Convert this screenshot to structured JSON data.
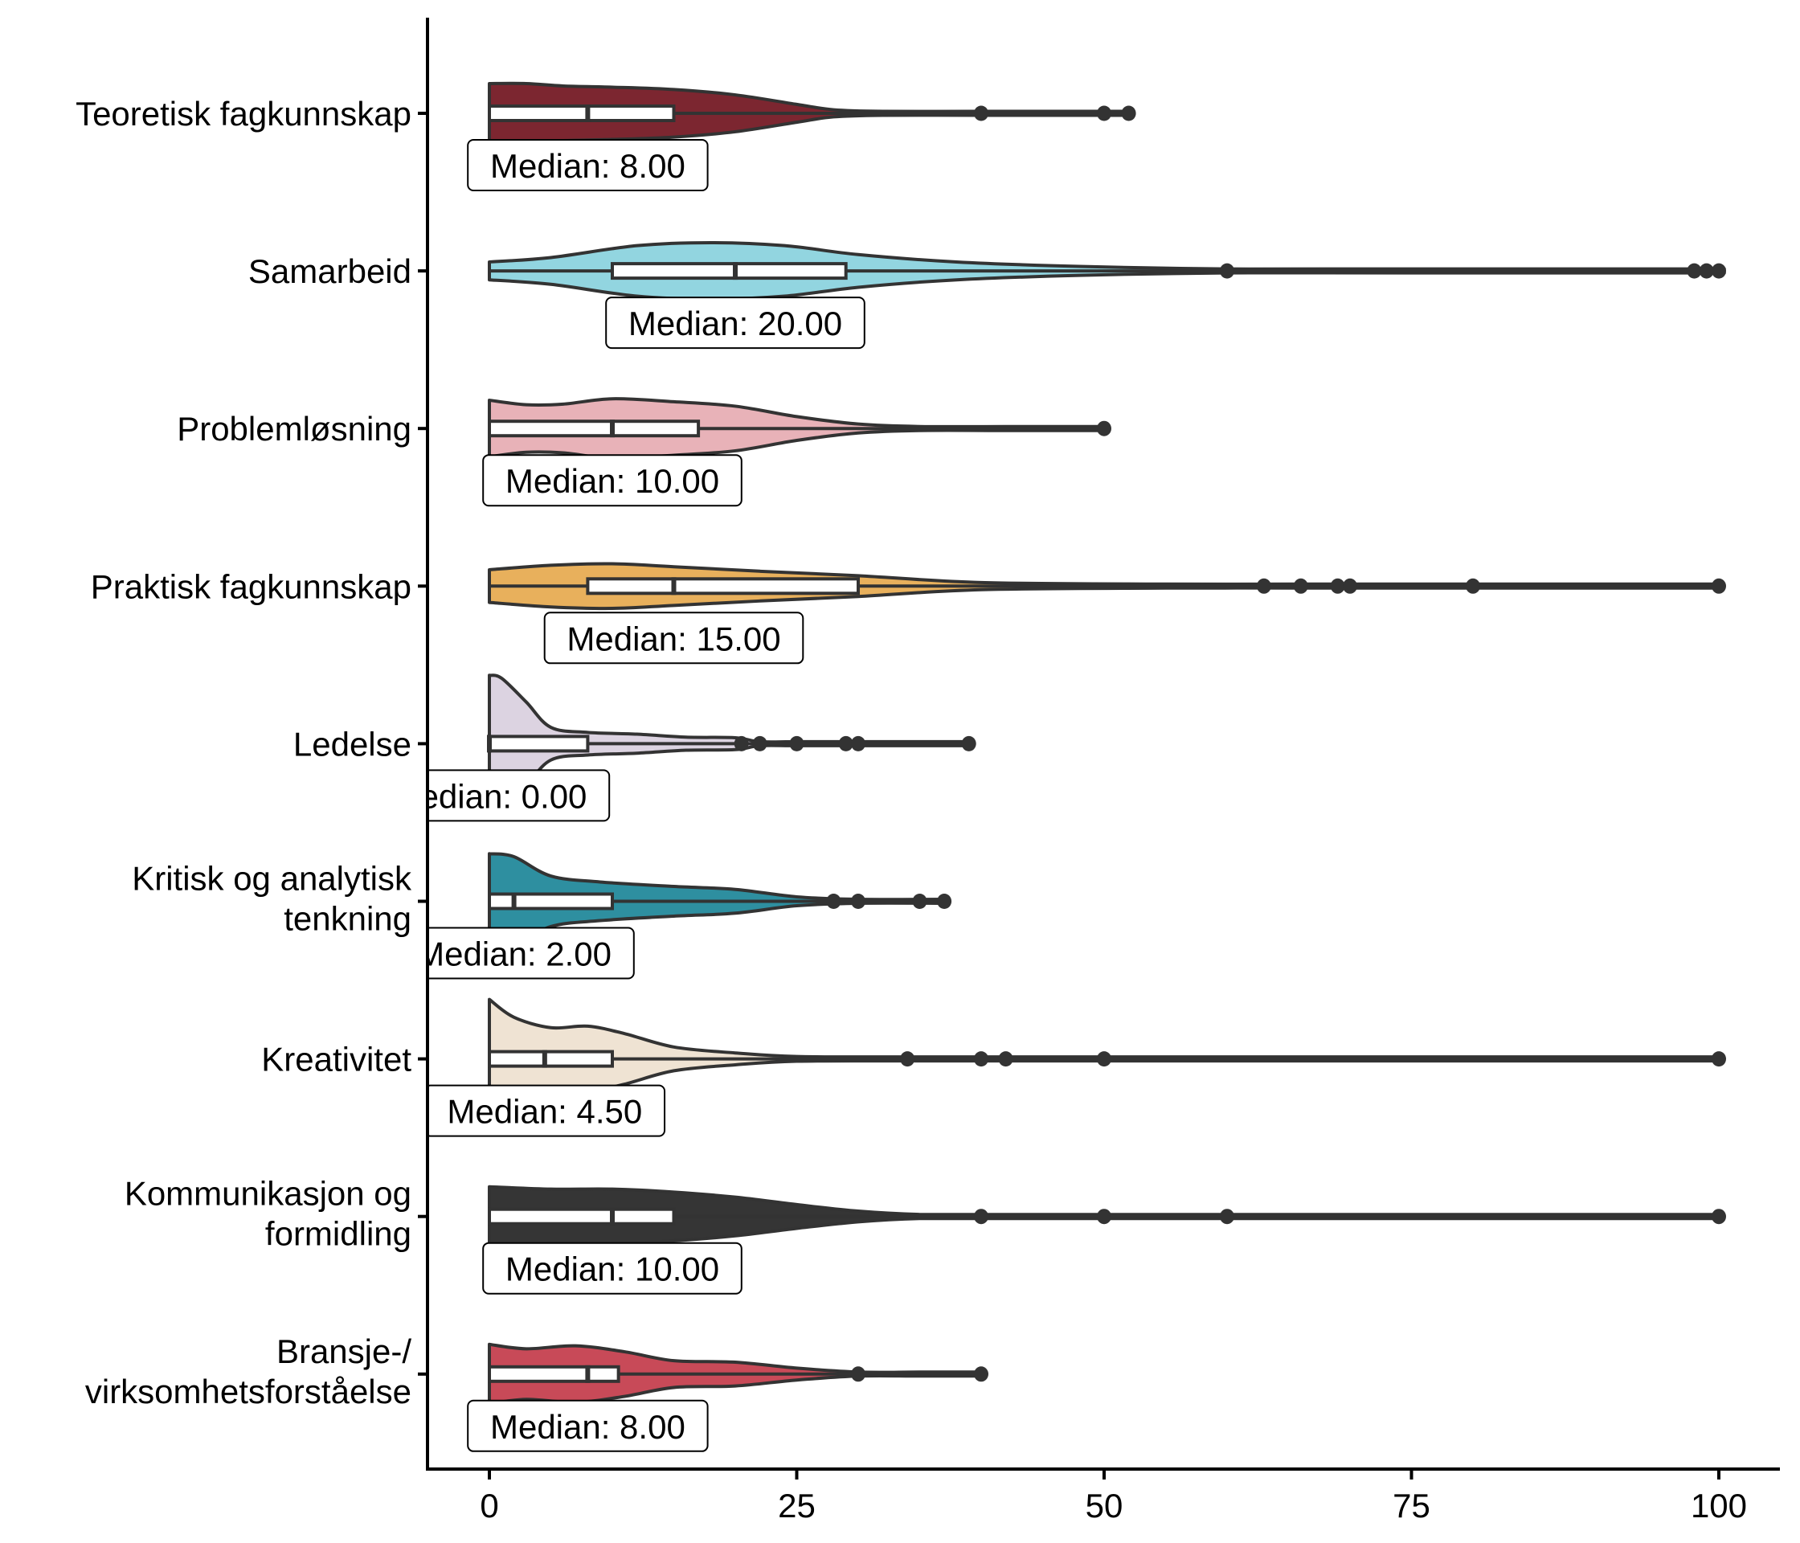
{
  "chart_data": {
    "type": "violin",
    "orientation": "horizontal",
    "title": "",
    "xlabel": "",
    "ylabel": "",
    "xlim": [
      -5,
      105
    ],
    "x_ticks": [
      0,
      25,
      50,
      75,
      100
    ],
    "x_tick_labels": [
      "0",
      "25",
      "50",
      "75",
      "100"
    ],
    "grid": false,
    "legend": "none",
    "median_label_prefix": "Median: ",
    "categories": [
      {
        "label": [
          "Teoretisk fagkunnskap"
        ],
        "color": "#7C2630",
        "q1": 0,
        "median": 8,
        "q3": 15,
        "median_label": "8.00",
        "outliers": [
          40,
          50,
          52
        ],
        "density": [
          [
            0,
            1.0
          ],
          [
            3,
            1.0
          ],
          [
            6,
            0.92
          ],
          [
            10,
            0.88
          ],
          [
            15,
            0.8
          ],
          [
            20,
            0.62
          ],
          [
            25,
            0.3
          ],
          [
            28,
            0.12
          ],
          [
            32,
            0.04
          ],
          [
            40,
            0.03
          ],
          [
            46,
            0.02
          ],
          [
            52,
            0.02
          ]
        ]
      },
      {
        "label": [
          "Samarbeid"
        ],
        "color": "#92D5E0",
        "q1": 10,
        "median": 20,
        "q3": 29,
        "median_label": "20.00",
        "outliers": [
          60,
          98,
          99,
          100
        ],
        "density": [
          [
            0,
            0.3
          ],
          [
            5,
            0.45
          ],
          [
            12,
            0.85
          ],
          [
            18,
            0.95
          ],
          [
            24,
            0.85
          ],
          [
            30,
            0.55
          ],
          [
            38,
            0.3
          ],
          [
            48,
            0.15
          ],
          [
            60,
            0.06
          ],
          [
            75,
            0.03
          ],
          [
            98,
            0.03
          ],
          [
            100,
            0.03
          ]
        ]
      },
      {
        "label": [
          "Problemløsning"
        ],
        "color": "#E8B2B8",
        "q1": 0,
        "median": 10,
        "q3": 17,
        "median_label": "10.00",
        "outliers": [
          50
        ],
        "density": [
          [
            0,
            0.95
          ],
          [
            3,
            0.8
          ],
          [
            6,
            0.82
          ],
          [
            10,
            1.0
          ],
          [
            15,
            0.9
          ],
          [
            20,
            0.75
          ],
          [
            25,
            0.4
          ],
          [
            30,
            0.15
          ],
          [
            35,
            0.05
          ],
          [
            42,
            0.03
          ],
          [
            50,
            0.03
          ]
        ]
      },
      {
        "label": [
          "Praktisk fagkunnskap"
        ],
        "color": "#E8B05C",
        "q1": 8,
        "median": 15,
        "q3": 30,
        "median_label": "15.00",
        "outliers": [
          63,
          66,
          69,
          70,
          80,
          100
        ],
        "density": [
          [
            0,
            0.55
          ],
          [
            5,
            0.7
          ],
          [
            10,
            0.75
          ],
          [
            15,
            0.65
          ],
          [
            22,
            0.5
          ],
          [
            30,
            0.35
          ],
          [
            40,
            0.12
          ],
          [
            55,
            0.06
          ],
          [
            66,
            0.05
          ],
          [
            80,
            0.03
          ],
          [
            100,
            0.03
          ]
        ]
      },
      {
        "label": [
          "Ledelse"
        ],
        "color": "#DCD3E1",
        "q1": 0,
        "median": 0,
        "q3": 8,
        "median_label": "0.00",
        "outliers": [
          20.5,
          22,
          25,
          29,
          30,
          39
        ],
        "density": [
          [
            0,
            2.3
          ],
          [
            1,
            2.2
          ],
          [
            3,
            1.4
          ],
          [
            5,
            0.55
          ],
          [
            8,
            0.38
          ],
          [
            12,
            0.32
          ],
          [
            16,
            0.22
          ],
          [
            20,
            0.2
          ],
          [
            22,
            0.06
          ],
          [
            25,
            0.05
          ],
          [
            30,
            0.05
          ],
          [
            39,
            0.04
          ]
        ]
      },
      {
        "label": [
          "Kritisk og analytisk",
          "tenkning"
        ],
        "color": "#2E8FA0",
        "q1": 0,
        "median": 2,
        "q3": 10,
        "median_label": "2.00",
        "outliers": [
          28,
          30,
          35,
          37
        ],
        "density": [
          [
            0,
            1.6
          ],
          [
            2,
            1.5
          ],
          [
            5,
            0.85
          ],
          [
            9,
            0.65
          ],
          [
            15,
            0.5
          ],
          [
            20,
            0.4
          ],
          [
            25,
            0.15
          ],
          [
            30,
            0.04
          ],
          [
            37,
            0.03
          ]
        ]
      },
      {
        "label": [
          "Kreativitet"
        ],
        "color": "#EFE3D3",
        "q1": 0,
        "median": 4.5,
        "q3": 10,
        "median_label": "4.50",
        "outliers": [
          34,
          40,
          42,
          50,
          100
        ],
        "density": [
          [
            0,
            2.0
          ],
          [
            2,
            1.4
          ],
          [
            5,
            1.05
          ],
          [
            8,
            1.1
          ],
          [
            11,
            0.85
          ],
          [
            15,
            0.4
          ],
          [
            20,
            0.2
          ],
          [
            25,
            0.08
          ],
          [
            34,
            0.04
          ],
          [
            50,
            0.03
          ],
          [
            100,
            0.03
          ]
        ]
      },
      {
        "label": [
          "Kommunikasjon og",
          "formidling"
        ],
        "color": "#353535",
        "q1": 0,
        "median": 10,
        "q3": 15,
        "median_label": "10.00",
        "outliers": [
          40,
          50,
          60,
          100
        ],
        "density": [
          [
            0,
            1.0
          ],
          [
            5,
            0.92
          ],
          [
            10,
            0.92
          ],
          [
            15,
            0.82
          ],
          [
            20,
            0.65
          ],
          [
            25,
            0.4
          ],
          [
            30,
            0.18
          ],
          [
            35,
            0.06
          ],
          [
            40,
            0.04
          ],
          [
            100,
            0.03
          ]
        ]
      },
      {
        "label": [
          "Bransje-/",
          "virksomhetsforståelse"
        ],
        "color": "#C84A58",
        "q1": 0,
        "median": 8,
        "q3": 10.5,
        "median_label": "8.00",
        "outliers": [
          30,
          40
        ],
        "density": [
          [
            0,
            1.0
          ],
          [
            3,
            0.85
          ],
          [
            7,
            0.95
          ],
          [
            11,
            0.75
          ],
          [
            15,
            0.45
          ],
          [
            20,
            0.4
          ],
          [
            25,
            0.2
          ],
          [
            30,
            0.06
          ],
          [
            35,
            0.05
          ],
          [
            40,
            0.04
          ]
        ]
      }
    ]
  }
}
